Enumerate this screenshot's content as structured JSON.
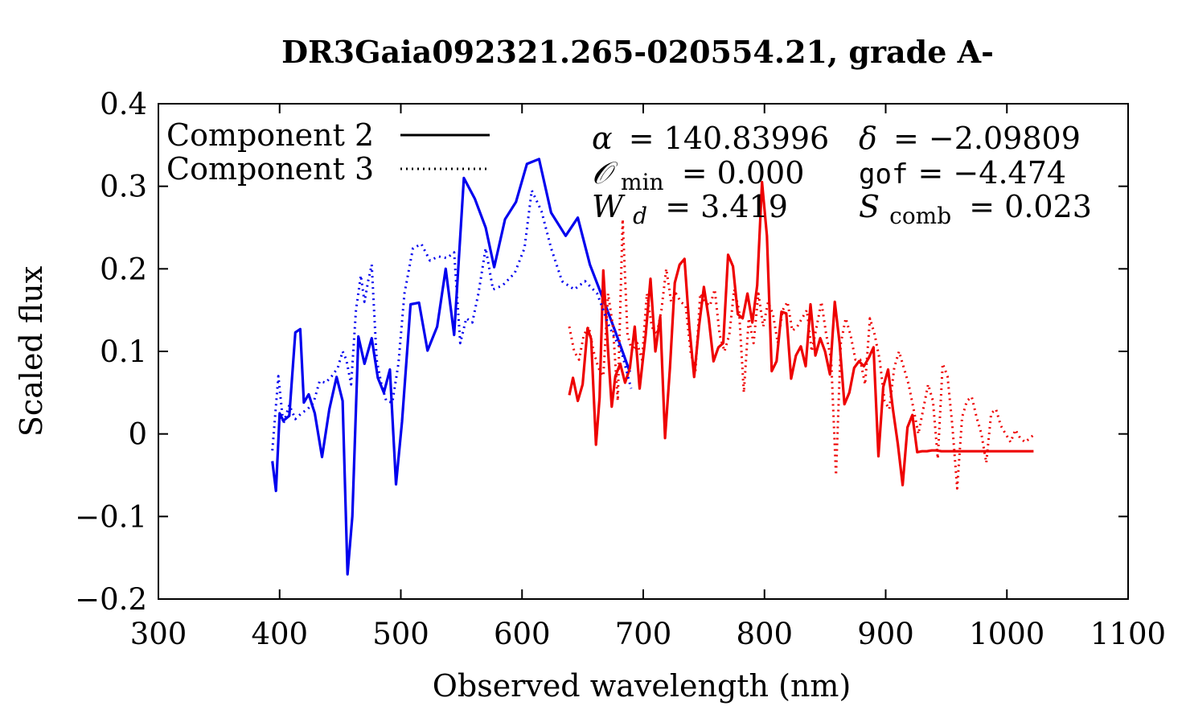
{
  "chart_data": {
    "type": "line",
    "title": "DR3Gaia092321.265-020554.21, grade A-",
    "xlabel": "Observed wavelength (nm)",
    "ylabel": "Scaled flux",
    "xlim": [
      300,
      1100
    ],
    "ylim": [
      -0.2,
      0.4
    ],
    "xticks": [
      300,
      400,
      500,
      600,
      700,
      800,
      900,
      1000,
      1100
    ],
    "xtick_labels": [
      "300",
      "400",
      "500",
      "600",
      "700",
      "800",
      "900",
      "1000",
      "1100"
    ],
    "yticks": [
      -0.2,
      -0.1,
      0,
      0.1,
      0.2,
      0.3,
      0.4
    ],
    "ytick_labels": [
      "−0.2",
      "−0.1",
      "0",
      "0.1",
      "0.2",
      "0.3",
      "0.4"
    ],
    "grid": false,
    "legend": {
      "position": "top-left",
      "entries": [
        {
          "label": "Component 2",
          "style": "solid"
        },
        {
          "label": "Component 3",
          "style": "dotted"
        }
      ]
    },
    "annotations": {
      "alpha": {
        "symbol": "α",
        "value": "= 140.83996"
      },
      "delta": {
        "symbol": "δ",
        "value": "= −2.09809"
      },
      "omin": {
        "symbol": "𝒪",
        "sub": "min",
        "value": "= 0.000"
      },
      "gof": {
        "symbol": "gof",
        "value": "= −4.474"
      },
      "wd": {
        "symbol": "W",
        "sub": "d",
        "value": "= 3.419"
      },
      "scomb": {
        "symbol": "S",
        "sub": "comb",
        "value": "= 0.023"
      }
    },
    "series": [
      {
        "name": "Component 2 (blue)",
        "color": "#0000ee",
        "style": "solid",
        "x": [
          394,
          397,
          400,
          403,
          408,
          413,
          417,
          420,
          424,
          429,
          435,
          441,
          447,
          452,
          456,
          460,
          465,
          470,
          476,
          481,
          486,
          491,
          496,
          501,
          508,
          515,
          522,
          530,
          537,
          544,
          552,
          561,
          570,
          577,
          586,
          595,
          604,
          614,
          624,
          636,
          646,
          656,
          666,
          677,
          689
        ],
        "y": [
          -0.033,
          -0.069,
          0.025,
          0.016,
          0.022,
          0.123,
          0.127,
          0.038,
          0.048,
          0.025,
          -0.028,
          0.03,
          0.069,
          0.04,
          -0.17,
          -0.1,
          0.118,
          0.085,
          0.116,
          0.068,
          0.05,
          0.078,
          -0.061,
          0.015,
          0.157,
          0.159,
          0.101,
          0.13,
          0.2,
          0.12,
          0.31,
          0.285,
          0.25,
          0.202,
          0.26,
          0.281,
          0.327,
          0.333,
          0.268,
          0.24,
          0.262,
          0.205,
          0.167,
          0.124,
          0.075
        ]
      },
      {
        "name": "Component 2 (red)",
        "color": "#ee0000",
        "style": "solid",
        "x": [
          639,
          642,
          646,
          650,
          654,
          657,
          661,
          664,
          667,
          671,
          674,
          677,
          681,
          685,
          689,
          693,
          697,
          702,
          706,
          710,
          714,
          718,
          722,
          726,
          730,
          734,
          738,
          742,
          746,
          750,
          754,
          758,
          762,
          766,
          770,
          774,
          778,
          782,
          786,
          790,
          794,
          798,
          802,
          806,
          810,
          814,
          818,
          822,
          826,
          830,
          834,
          838,
          842,
          846,
          850,
          854,
          858,
          862,
          866,
          870,
          874,
          878,
          882,
          886,
          890,
          894,
          898,
          902,
          906,
          910,
          914,
          918,
          922,
          926,
          930,
          934,
          938,
          942,
          946,
          950,
          954,
          958,
          962,
          966,
          970,
          974,
          978,
          982,
          986,
          990,
          994,
          998,
          1002,
          1006,
          1010,
          1014,
          1018,
          1022
        ],
        "y": [
          0.047,
          0.068,
          0.04,
          0.06,
          0.128,
          0.115,
          -0.013,
          0.044,
          0.198,
          0.1,
          0.033,
          0.07,
          0.085,
          0.062,
          0.08,
          0.13,
          0.055,
          0.12,
          0.188,
          0.1,
          0.142,
          -0.005,
          0.08,
          0.183,
          0.205,
          0.212,
          0.13,
          0.069,
          0.13,
          0.178,
          0.14,
          0.088,
          0.105,
          0.11,
          0.217,
          0.203,
          0.145,
          0.14,
          0.17,
          0.135,
          0.18,
          0.305,
          0.24,
          0.076,
          0.088,
          0.148,
          0.146,
          0.067,
          0.095,
          0.106,
          0.082,
          0.157,
          0.095,
          0.116,
          0.1,
          0.072,
          0.16,
          0.11,
          0.036,
          0.05,
          0.08,
          0.088,
          0.082,
          0.092,
          0.105,
          -0.027,
          0.057,
          0.078,
          0.03,
          -0.012,
          -0.062,
          0.008,
          0.023,
          -0.022,
          -0.021,
          -0.021,
          -0.02,
          -0.02,
          -0.021,
          -0.021,
          -0.021,
          -0.021,
          -0.021,
          -0.021,
          -0.021,
          -0.021,
          -0.021,
          -0.021,
          -0.021,
          -0.021,
          -0.021,
          -0.021,
          -0.021,
          -0.021,
          -0.021,
          -0.021,
          -0.021,
          -0.021
        ]
      },
      {
        "name": "Component 3 (blue)",
        "color": "#0000ee",
        "style": "dotted",
        "x": [
          394,
          399,
          403,
          408,
          413,
          418,
          423,
          428,
          433,
          438,
          443,
          448,
          452,
          455,
          459,
          463,
          467,
          470,
          473,
          476,
          480,
          484,
          488,
          493,
          498,
          503,
          510,
          517,
          524,
          531,
          538,
          544,
          549,
          554,
          559,
          564,
          570,
          576,
          584,
          594,
          602,
          608,
          616,
          624,
          633,
          643,
          652,
          662,
          672,
          682,
          690
        ],
        "y": [
          -0.02,
          0.07,
          0.012,
          0.035,
          0.018,
          0.025,
          0.03,
          0.038,
          0.064,
          0.062,
          0.07,
          0.08,
          0.1,
          0.09,
          0.06,
          0.15,
          0.192,
          0.16,
          0.185,
          0.205,
          0.09,
          0.06,
          0.04,
          0.038,
          0.085,
          0.17,
          0.225,
          0.23,
          0.21,
          0.215,
          0.213,
          0.22,
          0.11,
          0.14,
          0.135,
          0.17,
          0.225,
          0.175,
          0.18,
          0.195,
          0.225,
          0.295,
          0.27,
          0.225,
          0.185,
          0.175,
          0.185,
          0.17,
          0.13,
          0.1,
          0.055
        ]
      },
      {
        "name": "Component 3 (red)",
        "color": "#ee0000",
        "style": "dotted",
        "x": [
          639,
          643,
          647,
          651,
          655,
          659,
          663,
          667,
          671,
          675,
          679,
          683,
          687,
          691,
          695,
          699,
          703,
          707,
          711,
          715,
          719,
          723,
          727,
          731,
          735,
          739,
          743,
          747,
          751,
          755,
          759,
          763,
          767,
          771,
          775,
          779,
          783,
          787,
          791,
          795,
          799,
          803,
          807,
          811,
          815,
          819,
          823,
          827,
          831,
          835,
          839,
          843,
          847,
          851,
          855,
          859,
          863,
          867,
          871,
          875,
          879,
          883,
          887,
          891,
          895,
          899,
          903,
          907,
          911,
          915,
          919,
          923,
          927,
          931,
          935,
          939,
          943,
          947,
          951,
          955,
          959,
          963,
          967,
          971,
          975,
          979,
          983,
          987,
          991,
          995,
          999,
          1003,
          1007,
          1011,
          1015,
          1019,
          1023
        ],
        "y": [
          0.13,
          0.1,
          0.09,
          0.12,
          0.13,
          0.1,
          0.08,
          0.07,
          0.17,
          0.13,
          0.04,
          0.26,
          0.12,
          0.1,
          0.11,
          0.09,
          0.17,
          0.13,
          0.12,
          0.15,
          0.2,
          0.16,
          0.17,
          0.16,
          0.155,
          0.1,
          0.075,
          0.17,
          0.16,
          0.155,
          0.175,
          0.12,
          0.1,
          0.12,
          0.175,
          0.15,
          0.05,
          0.14,
          0.11,
          0.17,
          0.13,
          0.16,
          0.145,
          0.11,
          0.15,
          0.16,
          0.125,
          0.13,
          0.14,
          0.15,
          0.1,
          0.13,
          0.16,
          0.12,
          0.09,
          -0.05,
          0.11,
          0.14,
          0.12,
          0.09,
          0.09,
          0.06,
          0.14,
          0.12,
          0.09,
          0.04,
          0.03,
          0.08,
          0.1,
          0.08,
          0.06,
          0.03,
          0.0,
          0.03,
          0.06,
          0.04,
          -0.03,
          0.085,
          0.07,
          0.01,
          -0.066,
          0.02,
          0.04,
          0.045,
          0.02,
          0.0,
          -0.035,
          0.025,
          0.03,
          0.01,
          0.0,
          -0.01,
          0.005,
          -0.005,
          -0.01,
          -0.005,
          0.0
        ]
      }
    ]
  }
}
